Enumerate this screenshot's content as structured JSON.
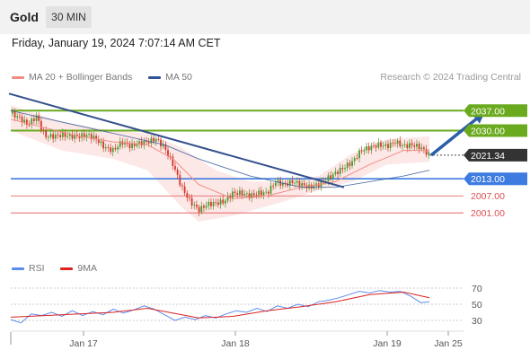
{
  "header": {
    "instrument": "Gold",
    "timeframe": "30 MIN",
    "datetime": "Friday, January 19, 2024 7:07:14 AM CET"
  },
  "legend": {
    "ma20_label": "MA 20 + Bollinger Bands",
    "ma50_label": "MA 50",
    "credit": "Research © 2024 Trading Central",
    "rsi_label": "RSI",
    "rsi_ma_label": "9MA"
  },
  "colors": {
    "ma20": "#f28b82",
    "ma50": "#2f5597",
    "bollinger_fill": "#fde4e4",
    "resistance": "#6aaa1e",
    "support": "#3d7be0",
    "minor_level": "#e05050",
    "current_price": "#333333",
    "arrow": "#2b5ea8",
    "candle_up": "#4a9a2a",
    "candle_down": "#d23a2a",
    "rsi": "#5b8def",
    "rsi_ma": "#dd2222"
  },
  "chart_data": [
    {
      "type": "candlestick",
      "x_tick_labels": [
        "Jan 17",
        "Jan 18",
        "Jan 19",
        "Jan 25"
      ],
      "ylim": [
        1990,
        2045
      ],
      "levels": [
        {
          "label": "2037.00",
          "value": 2037.0,
          "kind": "resistance"
        },
        {
          "label": "2030.00",
          "value": 2030.0,
          "kind": "resistance"
        },
        {
          "label": "2021.34",
          "value": 2021.34,
          "kind": "current"
        },
        {
          "label": "2013.00",
          "value": 2013.0,
          "kind": "support"
        },
        {
          "label": "2007.00",
          "value": 2007.0,
          "kind": "minor"
        },
        {
          "label": "2001.00",
          "value": 2001.0,
          "kind": "minor"
        }
      ],
      "close_path": [
        [
          0,
          2036
        ],
        [
          5,
          2034.5
        ],
        [
          10,
          2032
        ],
        [
          15,
          2035
        ],
        [
          20,
          2028
        ],
        [
          25,
          2028
        ],
        [
          30,
          2028.5
        ],
        [
          35,
          2028
        ],
        [
          40,
          2028
        ],
        [
          45,
          2028.5
        ],
        [
          50,
          2027
        ],
        [
          55,
          2024
        ],
        [
          60,
          2023
        ],
        [
          65,
          2026
        ],
        [
          70,
          2024.5
        ],
        [
          75,
          2025.5
        ],
        [
          80,
          2026
        ],
        [
          85,
          2027
        ],
        [
          90,
          2024
        ],
        [
          95,
          2018
        ],
        [
          100,
          2010
        ],
        [
          105,
          2005
        ],
        [
          110,
          2002
        ],
        [
          115,
          2004
        ],
        [
          120,
          2004.5
        ],
        [
          125,
          2005
        ],
        [
          130,
          2008
        ],
        [
          135,
          2008
        ],
        [
          140,
          2007
        ],
        [
          145,
          2008
        ],
        [
          150,
          2008
        ],
        [
          155,
          2012
        ],
        [
          160,
          2011
        ],
        [
          165,
          2012
        ],
        [
          170,
          2011
        ],
        [
          175,
          2010
        ],
        [
          180,
          2011
        ],
        [
          185,
          2013
        ],
        [
          190,
          2015
        ],
        [
          195,
          2017
        ],
        [
          200,
          2019
        ],
        [
          205,
          2023
        ],
        [
          210,
          2024
        ],
        [
          215,
          2025
        ],
        [
          220,
          2024.5
        ],
        [
          225,
          2026
        ],
        [
          230,
          2024.5
        ],
        [
          235,
          2025
        ],
        [
          240,
          2024
        ],
        [
          245,
          2021.34
        ]
      ],
      "ma20": [
        [
          0,
          2034
        ],
        [
          20,
          2031
        ],
        [
          40,
          2028
        ],
        [
          60,
          2026
        ],
        [
          80,
          2025
        ],
        [
          95,
          2020
        ],
        [
          110,
          2011
        ],
        [
          130,
          2006
        ],
        [
          150,
          2007
        ],
        [
          170,
          2010
        ],
        [
          190,
          2012
        ],
        [
          210,
          2018
        ],
        [
          230,
          2023
        ],
        [
          245,
          2023
        ]
      ],
      "ma50": [
        [
          0,
          2037
        ],
        [
          30,
          2033
        ],
        [
          60,
          2029
        ],
        [
          90,
          2025
        ],
        [
          110,
          2020
        ],
        [
          140,
          2014
        ],
        [
          170,
          2010
        ],
        [
          190,
          2010
        ],
        [
          210,
          2012
        ],
        [
          230,
          2014
        ],
        [
          245,
          2016
        ]
      ],
      "bollinger_upper": [
        [
          0,
          2039
        ],
        [
          30,
          2033
        ],
        [
          60,
          2030
        ],
        [
          80,
          2029
        ],
        [
          100,
          2024
        ],
        [
          120,
          2016
        ],
        [
          140,
          2012
        ],
        [
          160,
          2012
        ],
        [
          180,
          2014
        ],
        [
          200,
          2022
        ],
        [
          220,
          2027
        ],
        [
          245,
          2028
        ]
      ],
      "bollinger_lower": [
        [
          0,
          2030
        ],
        [
          30,
          2023
        ],
        [
          60,
          2020
        ],
        [
          80,
          2016
        ],
        [
          100,
          2003
        ],
        [
          110,
          1998
        ],
        [
          130,
          2000
        ],
        [
          160,
          2005
        ],
        [
          180,
          2009
        ],
        [
          200,
          2012
        ],
        [
          220,
          2018
        ],
        [
          245,
          2019
        ]
      ],
      "trendline": [
        [
          0,
          2043
        ],
        [
          195,
          2010
        ]
      ],
      "projection_arrow": [
        [
          245,
          2021.34
        ],
        [
          262,
          2037
        ]
      ]
    },
    {
      "type": "line",
      "title": "RSI",
      "ylim": [
        20,
        80
      ],
      "y_tick_labels": [
        "70",
        "50",
        "30"
      ],
      "y_ticks": [
        70,
        50,
        30
      ],
      "series": [
        {
          "name": "RSI",
          "values": [
            [
              0,
              31
            ],
            [
              6,
              27
            ],
            [
              12,
              38
            ],
            [
              18,
              36
            ],
            [
              24,
              40
            ],
            [
              30,
              35
            ],
            [
              36,
              42
            ],
            [
              42,
              36
            ],
            [
              48,
              41
            ],
            [
              54,
              37
            ],
            [
              60,
              44
            ],
            [
              66,
              39
            ],
            [
              72,
              43
            ],
            [
              78,
              48
            ],
            [
              84,
              44
            ],
            [
              90,
              37
            ],
            [
              96,
              30
            ],
            [
              102,
              34
            ],
            [
              108,
              31
            ],
            [
              114,
              36
            ],
            [
              120,
              33
            ],
            [
              126,
              38
            ],
            [
              132,
              42
            ],
            [
              138,
              40
            ],
            [
              144,
              45
            ],
            [
              150,
              41
            ],
            [
              156,
              48
            ],
            [
              162,
              45
            ],
            [
              168,
              50
            ],
            [
              174,
              47
            ],
            [
              180,
              53
            ],
            [
              186,
              55
            ],
            [
              192,
              58
            ],
            [
              198,
              62
            ],
            [
              204,
              66
            ],
            [
              210,
              64
            ],
            [
              216,
              67
            ],
            [
              222,
              65
            ],
            [
              228,
              66
            ],
            [
              234,
              60
            ],
            [
              240,
              52
            ],
            [
              245,
              53
            ]
          ]
        },
        {
          "name": "9MA",
          "values": [
            [
              0,
              34
            ],
            [
              20,
              36
            ],
            [
              40,
              38
            ],
            [
              60,
              40
            ],
            [
              80,
              45
            ],
            [
              95,
              39
            ],
            [
              110,
              33
            ],
            [
              130,
              35
            ],
            [
              150,
              42
            ],
            [
              170,
              47
            ],
            [
              190,
              53
            ],
            [
              210,
              62
            ],
            [
              230,
              65
            ],
            [
              245,
              58
            ]
          ]
        }
      ]
    }
  ]
}
